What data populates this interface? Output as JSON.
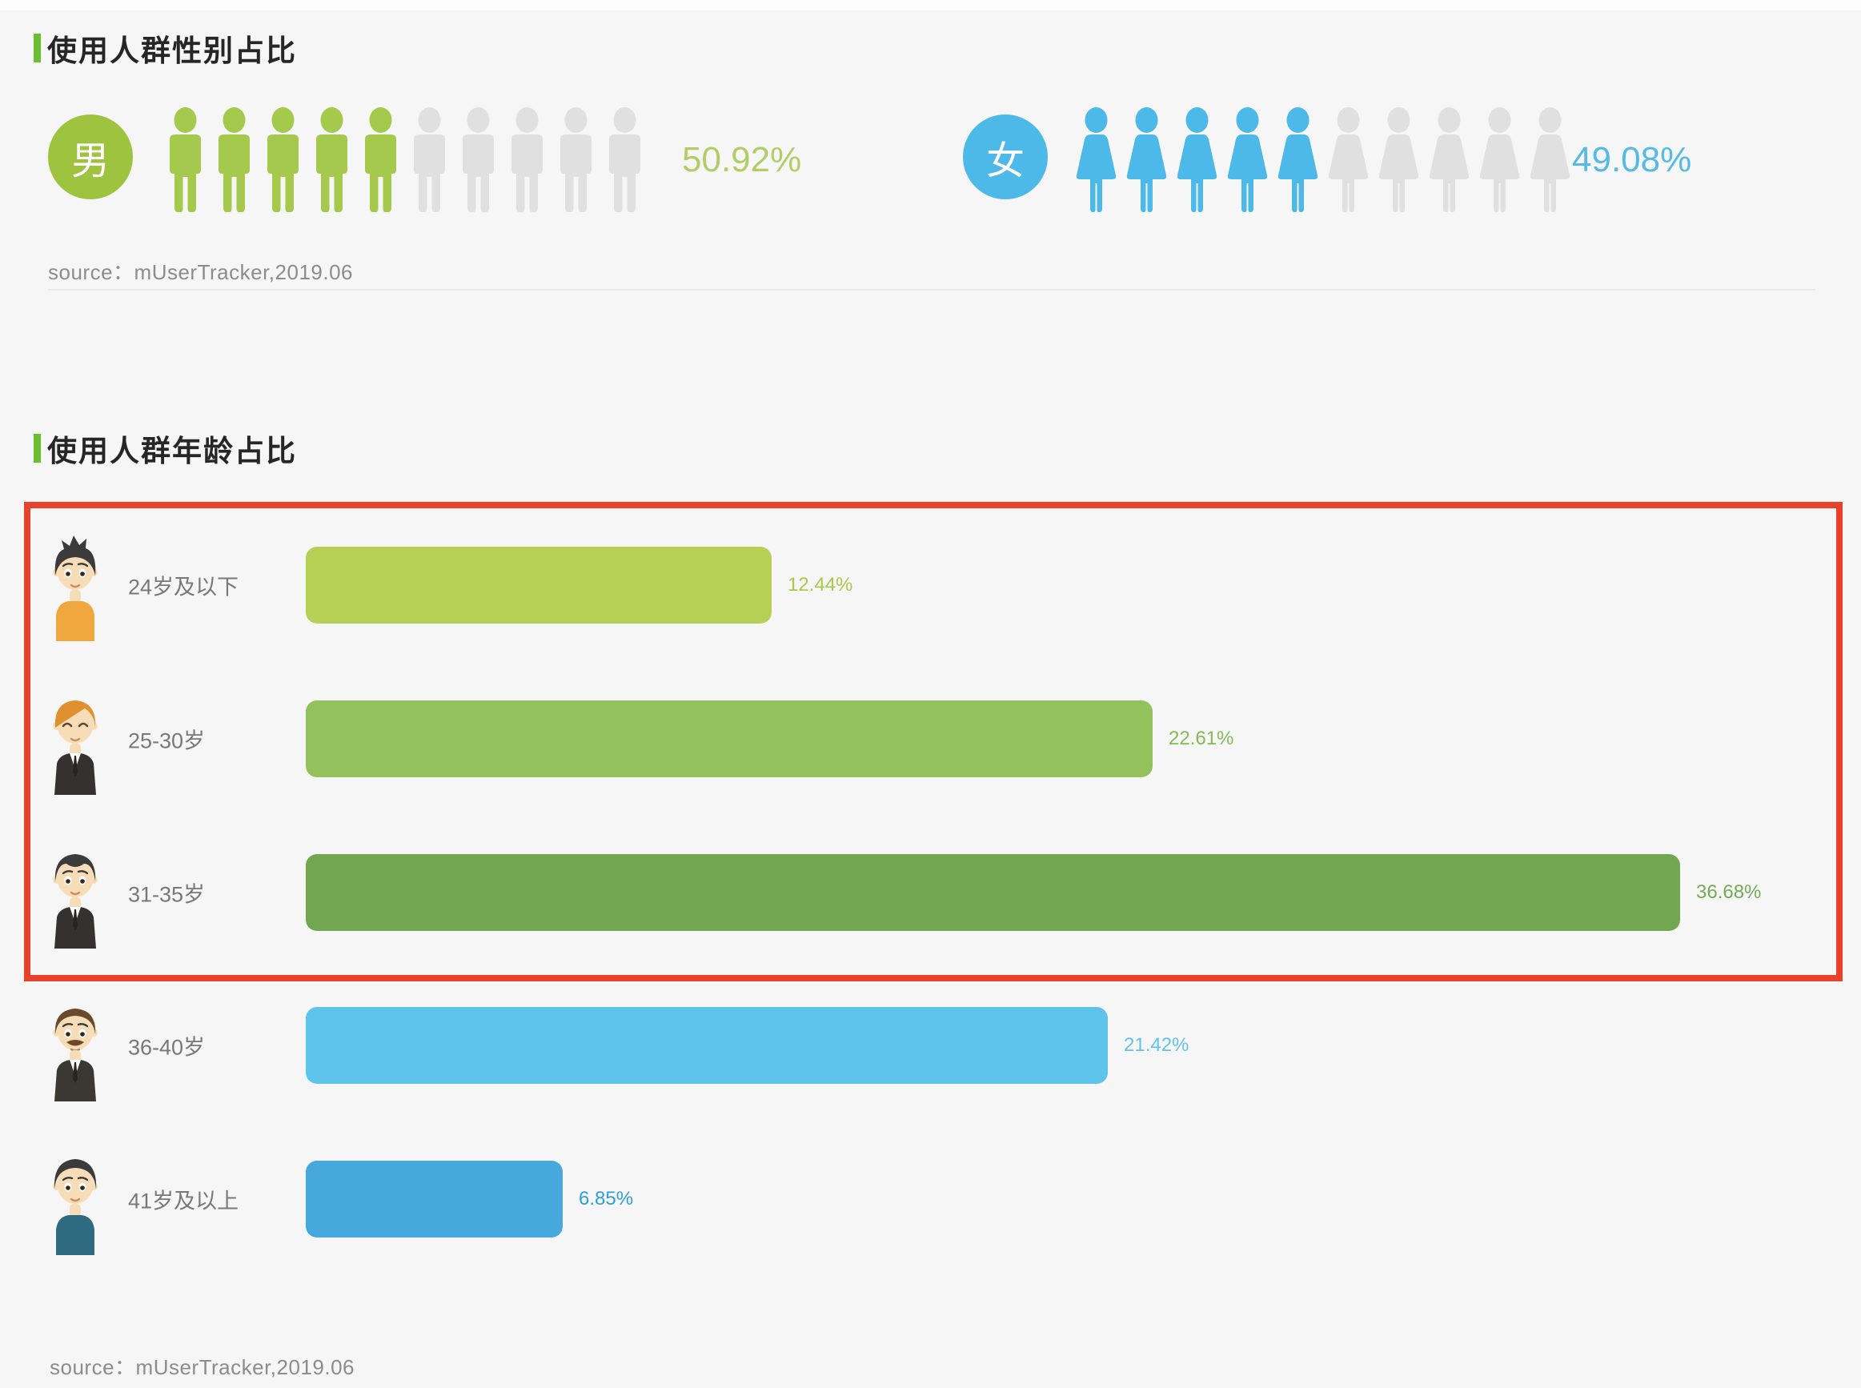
{
  "page": {
    "background": "#f6f6f6"
  },
  "gender_section": {
    "title": "使用人群性别占比",
    "accent_color": "#6abe30",
    "male": {
      "label": "男",
      "percent": "50.92%",
      "value": 50.92,
      "badge_color": "#9ec43f",
      "icon_color": "#a5c94c",
      "percent_color": "#b2cd68",
      "filled_icons": 5,
      "total_icons": 10
    },
    "female": {
      "label": "女",
      "percent": "49.08%",
      "value": 49.08,
      "badge_color": "#4cb9e9",
      "icon_color": "#4cb9e9",
      "percent_color": "#54bbe9",
      "filled_icons": 5,
      "total_icons": 10
    },
    "empty_icon_color": "#e0e0e0",
    "source": "source：mUserTracker,2019.06"
  },
  "age_section": {
    "title": "使用人群年龄占比",
    "accent_color": "#6abe30",
    "highlight_color": "#e8432a",
    "source": "source：mUserTracker,2019.06",
    "rows": [
      {
        "label": "24岁及以下",
        "percent": "12.44%",
        "value": 12.44,
        "bar_color": "#b6d055",
        "percent_color": "#a9c94d",
        "highlighted": true,
        "avatar": {
          "hair": "spiky",
          "hair_color": "#3b3b3b",
          "outfit": "tee",
          "outfit_color": "#f0a73e",
          "eyes": "open",
          "moustache": false
        }
      },
      {
        "label": "25-30岁",
        "percent": "22.61%",
        "value": 22.61,
        "bar_color": "#93c15c",
        "percent_color": "#85ba55",
        "highlighted": true,
        "avatar": {
          "hair": "sidepart",
          "hair_color": "#e0912f",
          "outfit": "suit",
          "outfit_color": "#33322f",
          "eyes": "happy",
          "moustache": false
        }
      },
      {
        "label": "31-35岁",
        "percent": "36.68%",
        "value": 36.68,
        "bar_color": "#71a751",
        "percent_color": "#74aa54",
        "highlighted": true,
        "avatar": {
          "hair": "neat",
          "hair_color": "#3b3b3b",
          "outfit": "suit",
          "outfit_color": "#33322f",
          "eyes": "open",
          "moustache": false
        }
      },
      {
        "label": "36-40岁",
        "percent": "21.42%",
        "value": 21.42,
        "bar_color": "#5fc4eb",
        "percent_color": "#64c2e9",
        "highlighted": false,
        "avatar": {
          "hair": "short",
          "hair_color": "#6b4a2b",
          "outfit": "suit",
          "outfit_color": "#3a3833",
          "eyes": "open",
          "moustache": true
        }
      },
      {
        "label": "41岁及以上",
        "percent": "6.85%",
        "value": 6.85,
        "bar_color": "#46a8dc",
        "percent_color": "#2f9fd7",
        "highlighted": false,
        "avatar": {
          "hair": "round",
          "hair_color": "#3b3b3b",
          "outfit": "tee",
          "outfit_color": "#2e6b80",
          "eyes": "open",
          "moustache": false
        }
      }
    ]
  },
  "chart_data": [
    {
      "type": "pictogram",
      "title": "使用人群性别占比",
      "categories": [
        "男",
        "女"
      ],
      "values": [
        50.92,
        49.08
      ],
      "units": "%",
      "icons_filled": [
        5,
        5
      ],
      "icons_total": 10,
      "colors": [
        "#9ec43f",
        "#4cb9e9"
      ],
      "empty_icon_color": "#e0e0e0",
      "source": "mUserTracker,2019.06"
    },
    {
      "type": "bar",
      "orientation": "horizontal",
      "title": "使用人群年龄占比",
      "categories": [
        "24岁及以下",
        "25-30岁",
        "31-35岁",
        "36-40岁",
        "41岁及以上"
      ],
      "values": [
        12.44,
        22.61,
        36.68,
        21.42,
        6.85
      ],
      "units": "%",
      "xlim": [
        0,
        40
      ],
      "grid": false,
      "legend": false,
      "bar_colors": [
        "#b6d055",
        "#93c15c",
        "#71a751",
        "#5fc4eb",
        "#46a8dc"
      ],
      "data_labels": [
        "12.44%",
        "22.61%",
        "36.68%",
        "21.42%",
        "6.85%"
      ],
      "annotation_highlight_box": {
        "rows": [
          "24岁及以下",
          "25-30岁",
          "31-35岁"
        ],
        "color": "#e8432a"
      },
      "source": "mUserTracker,2019.06"
    }
  ]
}
